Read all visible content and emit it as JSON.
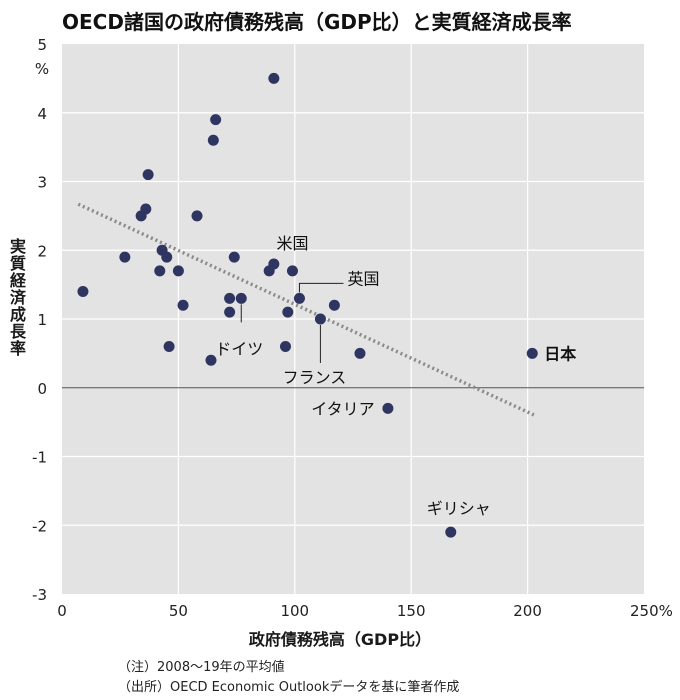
{
  "title": "OECD諸国の政府債務残高（GDP比）と実質経済成長率",
  "notes": [
    "（注）2008～19年の平均値",
    "（出所）OECD Economic Outlookデータを基に筆者作成"
  ],
  "colors": {
    "plot_background": "#e3e3e3",
    "dot": "#2e3560",
    "trendline": "#8a8a8a",
    "gridline": "#ffffff",
    "zero_line": "#555555"
  },
  "chart_data": {
    "type": "scatter",
    "xlabel": "政府債務残高（GDP比）",
    "ylabel": "実質経済成長率",
    "xlim": [
      0,
      250
    ],
    "ylim": [
      -3,
      5
    ],
    "x_ticks": [
      "0",
      "50",
      "100",
      "150",
      "200",
      "250%"
    ],
    "y_ticks": [
      "5",
      "4",
      "3",
      "2",
      "1",
      "0",
      "-1",
      "-2",
      "-3"
    ],
    "y_unit": "%",
    "grid": true,
    "trendline": {
      "style": "dotted",
      "from": [
        7,
        2.67
      ],
      "to": [
        203,
        -0.4
      ]
    },
    "points": [
      {
        "x": 9,
        "y": 1.4
      },
      {
        "x": 27,
        "y": 1.9
      },
      {
        "x": 34,
        "y": 2.5
      },
      {
        "x": 36,
        "y": 2.6
      },
      {
        "x": 37,
        "y": 3.1
      },
      {
        "x": 42,
        "y": 1.7
      },
      {
        "x": 43,
        "y": 2.0
      },
      {
        "x": 45,
        "y": 1.9
      },
      {
        "x": 46,
        "y": 0.6
      },
      {
        "x": 50,
        "y": 1.7
      },
      {
        "x": 52,
        "y": 1.2
      },
      {
        "x": 58,
        "y": 2.5
      },
      {
        "x": 64,
        "y": 0.4
      },
      {
        "x": 65,
        "y": 3.6
      },
      {
        "x": 66,
        "y": 3.9
      },
      {
        "x": 72,
        "y": 1.3
      },
      {
        "x": 72,
        "y": 1.1
      },
      {
        "x": 74,
        "y": 1.9
      },
      {
        "x": 77,
        "y": 1.3,
        "label": "ドイツ"
      },
      {
        "x": 89,
        "y": 1.7
      },
      {
        "x": 91,
        "y": 1.8
      },
      {
        "x": 91,
        "y": 4.5
      },
      {
        "x": 96,
        "y": 0.6
      },
      {
        "x": 97,
        "y": 1.1
      },
      {
        "x": 99,
        "y": 1.7,
        "label": "米国"
      },
      {
        "x": 102,
        "y": 1.3,
        "label": "英国"
      },
      {
        "x": 111,
        "y": 1.0,
        "label": "フランス"
      },
      {
        "x": 117,
        "y": 1.2
      },
      {
        "x": 128,
        "y": 0.5
      },
      {
        "x": 140,
        "y": -0.3,
        "label": "イタリア"
      },
      {
        "x": 167,
        "y": -2.1,
        "label": "ギリシャ"
      },
      {
        "x": 202,
        "y": 0.5,
        "label": "日本"
      }
    ]
  }
}
